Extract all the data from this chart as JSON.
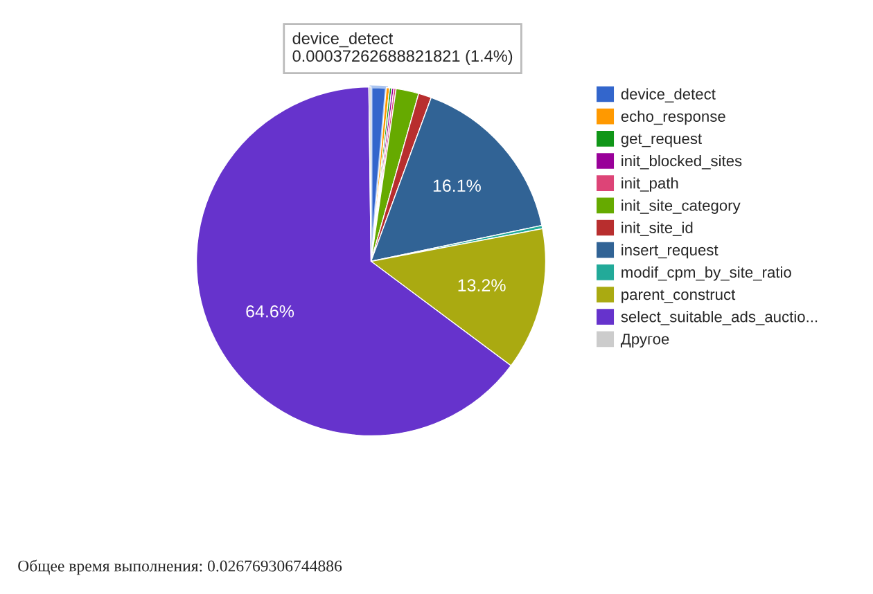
{
  "chart_data": {
    "type": "pie",
    "categories": [
      "device_detect",
      "echo_response",
      "get_request",
      "init_blocked_sites",
      "init_path",
      "init_site_category",
      "init_site_id",
      "insert_request",
      "modif_cpm_by_site_ratio",
      "parent_construct",
      "select_suitable_ads_auctio...",
      "Другое"
    ],
    "values": [
      1.4,
      0.3,
      0.2,
      0.2,
      0.2,
      2.1,
      1.2,
      16.1,
      0.3,
      13.2,
      64.6,
      0.2
    ],
    "colors": [
      "#3366cc",
      "#ff9900",
      "#109618",
      "#990099",
      "#dd4477",
      "#66aa00",
      "#b82e2e",
      "#316395",
      "#22aa99",
      "#aaaa11",
      "#6633cc",
      "#cccccc"
    ],
    "value_labels": [
      null,
      null,
      null,
      null,
      null,
      null,
      null,
      "16.1%",
      null,
      "13.2%",
      "64.6%",
      null
    ],
    "legend": "right",
    "annotations": [
      {
        "text": "device_detect\n0.00037262688821821 (1.4%)",
        "x": "device_detect"
      },
      "Общее время выполнения: 0.026769306744886"
    ]
  }
}
